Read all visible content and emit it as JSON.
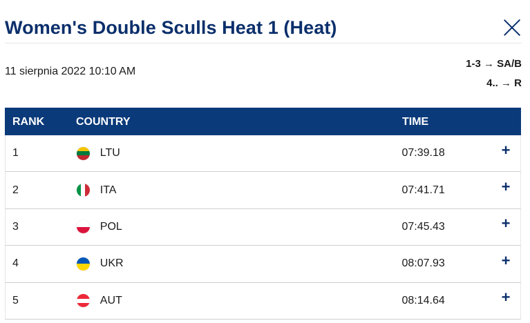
{
  "header": {
    "title": "Women's Double Sculls Heat 1 (Heat)"
  },
  "meta": {
    "datetime": "11 sierpnia 2022 10:10 AM",
    "progression": [
      "1-3 → SA/B",
      "4.. → R"
    ]
  },
  "table": {
    "columns": {
      "rank": "RANK",
      "country": "COUNTRY",
      "time": "TIME"
    },
    "rows": [
      {
        "rank": "1",
        "country": "LTU",
        "time": "07:39.18",
        "flag_type": "h3",
        "flag_colors": [
          "#f4c300",
          "#007a3d",
          "#c1272d"
        ]
      },
      {
        "rank": "2",
        "country": "ITA",
        "time": "07:41.71",
        "flag_type": "v3",
        "flag_colors": [
          "#009246",
          "#ffffff",
          "#ce2b37"
        ]
      },
      {
        "rank": "3",
        "country": "POL",
        "time": "07:45.43",
        "flag_type": "h2",
        "flag_colors": [
          "#ffffff",
          "#dc143c"
        ]
      },
      {
        "rank": "4",
        "country": "UKR",
        "time": "08:07.93",
        "flag_type": "h2",
        "flag_colors": [
          "#0057b7",
          "#ffd700"
        ]
      },
      {
        "rank": "5",
        "country": "AUT",
        "time": "08:14.64",
        "flag_type": "h3",
        "flag_colors": [
          "#ed2939",
          "#ffffff",
          "#ed2939"
        ]
      }
    ],
    "expand_symbol": "+"
  },
  "colors": {
    "accent": "#0b2f6b",
    "header_bg": "#0b3a7a"
  },
  "icons": {
    "close": "close-icon",
    "expand": "plus-icon"
  }
}
